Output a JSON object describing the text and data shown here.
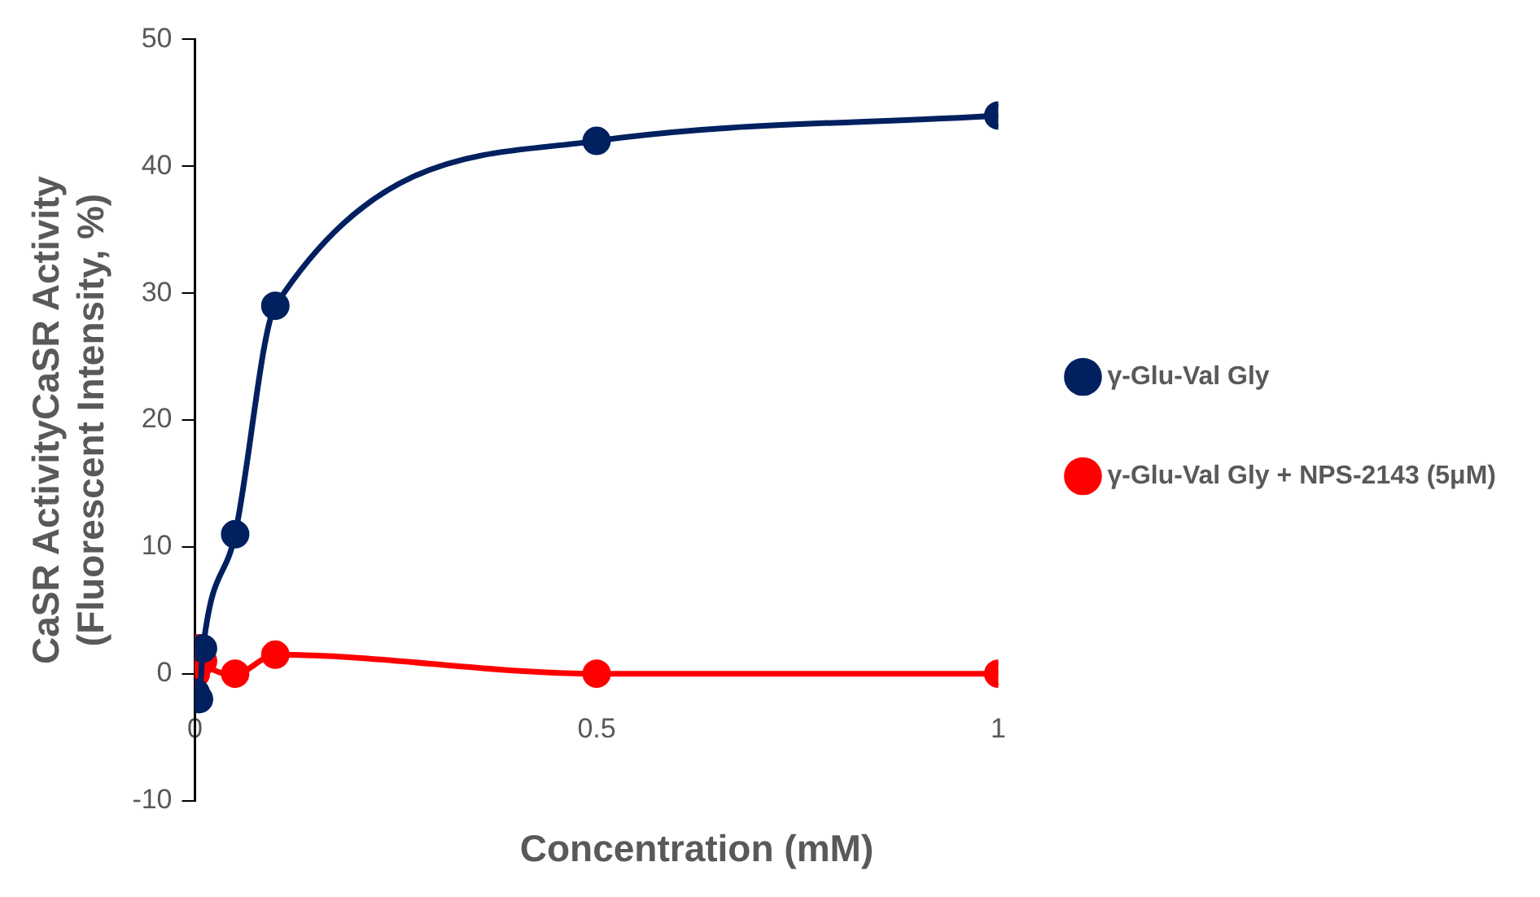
{
  "chart_data": {
    "type": "line",
    "xlabel": "Concentration (mM)",
    "ylabel": "CaSR ActivityCaSR Activity\n(Fluorescent Intensity, %)",
    "x": [
      0.001,
      0.005,
      0.01,
      0.05,
      0.1,
      0.5,
      1
    ],
    "series": [
      {
        "name": "γ-Glu-Val Gly",
        "color": "#002060",
        "values": [
          -1.5,
          -2,
          2,
          11,
          29,
          42,
          44
        ]
      },
      {
        "name": "γ-Glu-Val Gly + NPS-2143 (5μM)",
        "color": "#ff0000",
        "values": [
          0,
          2,
          1,
          0,
          1.5,
          0,
          0
        ]
      }
    ],
    "xlim": [
      0,
      1
    ],
    "xticks": [
      0,
      0.5,
      1
    ],
    "ylim": [
      -10,
      50
    ],
    "yticks": [
      -10,
      0,
      10,
      20,
      30,
      40,
      50
    ],
    "grid": false,
    "legend": "right",
    "marker": "circle",
    "line_style": "solid"
  }
}
